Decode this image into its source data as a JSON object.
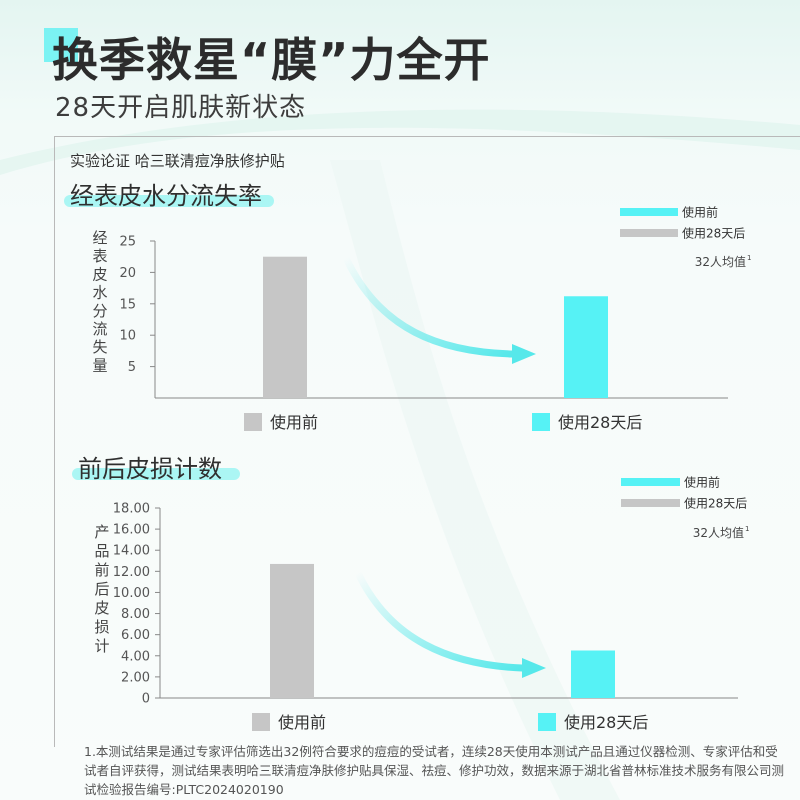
{
  "header": {
    "title": "换季救星“膜”力全开",
    "subtitle": "28天开启肌肤新状态",
    "lab_text": "实验论证 哈三联清痘净肤修护贴"
  },
  "colors": {
    "before": "#c6c6c6",
    "after": "#56f2f5",
    "arrow": "#56e8ea",
    "accent": "#6ef2ef"
  },
  "chart_data": [
    {
      "type": "bar",
      "title": "经表皮水分流失率",
      "ylabel": "经表皮水分流失量",
      "categories": [
        "使用前",
        "使用28天后"
      ],
      "values": [
        22.5,
        16.2
      ],
      "ylim": [
        0,
        25
      ],
      "yticks": [
        "5",
        "10",
        "15",
        "20",
        "25"
      ],
      "legend": [
        "使用前",
        "使用28天后"
      ],
      "legend_position": "top-right",
      "note": "32人均值",
      "note_sup": "1",
      "grid": false
    },
    {
      "type": "bar",
      "title": "前后皮损计数",
      "ylabel": "产品前后皮损计",
      "categories": [
        "使用前",
        "使用28天后"
      ],
      "values": [
        12.7,
        4.5
      ],
      "ylim": [
        0,
        18
      ],
      "yticks": [
        "0",
        "2.00",
        "4.00",
        "6.00",
        "8.00",
        "10.00",
        "12.00",
        "14.00",
        "16.00",
        "18.00"
      ],
      "legend": [
        "使用前",
        "使用28天后"
      ],
      "legend_position": "top-right",
      "note": "32人均值",
      "note_sup": "1",
      "grid": false
    }
  ],
  "footnote": "1.本测试结果是通过专家评估筛选出32例符合要求的痘痘的受试者，连续28天使用本测试产品且通过仪器检测、专家评估和受试者自评获得，测试结果表明哈三联清痘净肤修护贴具保湿、祛痘、修护功效，数据来源于湖北省普林标准技术服务有限公司测试检验报告编号:PLTC2024020190"
}
